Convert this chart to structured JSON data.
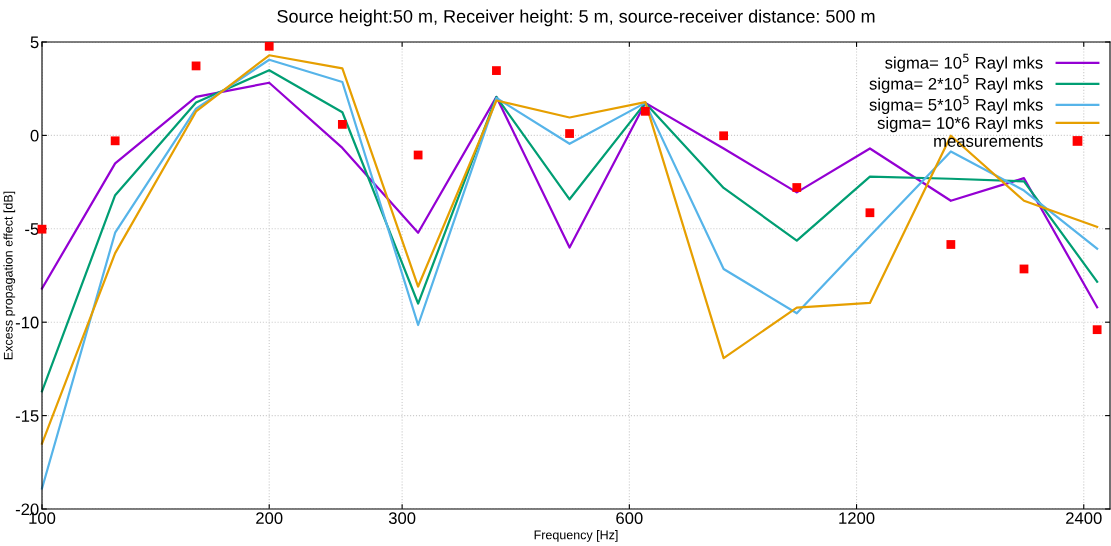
{
  "chart_data": {
    "type": "line",
    "title": "Source height:50 m, Receiver height: 5 m, source-receiver distance: 500 m",
    "xlabel": "Frequency [Hz]",
    "ylabel": "Excess propagation effect [dB]",
    "log": "x",
    "xlim": [
      100,
      2600
    ],
    "xticks": [
      100,
      200,
      300,
      600,
      1200,
      2400
    ],
    "ylim": [
      -20,
      5
    ],
    "yticks": [
      -20,
      -15,
      -10,
      -5,
      0,
      5
    ],
    "grid": true,
    "legend": "top right",
    "marker": "none",
    "line_style": "solid",
    "x": [
      100,
      125,
      160,
      200,
      250,
      315,
      400,
      500,
      630,
      800,
      1000,
      1250,
      1600,
      2000,
      2500
    ],
    "series": [
      {
        "name": "sigma= 10$^{5}$ Rayl mks",
        "color": "#9400d3",
        "values": [
          -8.2,
          -1.5,
          2.06,
          2.82,
          -0.67,
          -5.21,
          2.06,
          -6.0,
          1.74,
          -0.7,
          -3.05,
          -0.7,
          -3.5,
          -2.29,
          -9.2
        ]
      },
      {
        "name": "sigma= 2*10$^{5}$ Rayl mks",
        "color": "#009e73",
        "values": [
          -13.7,
          -3.2,
          1.76,
          3.49,
          1.24,
          -9.0,
          2.06,
          -3.42,
          1.74,
          -2.81,
          -5.63,
          -2.21,
          -2.32,
          -2.46,
          -7.83
        ]
      },
      {
        "name": "sigma= 5*10$^{5}$ Rayl mks",
        "color": "#56b4e9",
        "values": [
          -18.9,
          -5.21,
          1.43,
          4.05,
          2.86,
          -10.15,
          2.0,
          -0.45,
          1.74,
          -7.15,
          -9.52,
          -5.39,
          -0.86,
          -2.95,
          -6.07
        ]
      },
      {
        "name": "sigma= 10*6 Rayl mks",
        "color": "#e69f00",
        "values": [
          -16.5,
          -6.3,
          1.28,
          4.29,
          3.59,
          -8.09,
          1.87,
          0.96,
          1.78,
          -11.92,
          -9.22,
          -8.97,
          -0.02,
          -3.5,
          -4.9
        ]
      },
      {
        "name": "measurements",
        "type": "scatter",
        "marker": "square",
        "color": "#ff0000",
        "values": [
          -5.02,
          -0.29,
          3.72,
          4.77,
          0.59,
          -1.05,
          3.47,
          0.1,
          1.29,
          -0.02,
          -2.79,
          -4.14,
          -5.84,
          -7.15,
          -10.4
        ]
      }
    ]
  }
}
